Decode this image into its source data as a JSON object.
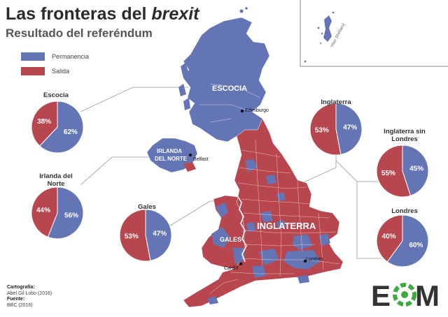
{
  "title": {
    "main": "Las fronteras del ",
    "emph": "brexit"
  },
  "subtitle": "Resultado del referéndum",
  "colors": {
    "remain": "#6475b6",
    "leave": "#b8464f",
    "logo_dark": "#333333",
    "logo_green": "#3caa3c"
  },
  "legend": [
    {
      "label": "Permanencia",
      "color_key": "remain"
    },
    {
      "label": "Salida",
      "color_key": "leave"
    }
  ],
  "map": {
    "regions": {
      "scotland": "ESCOCIA",
      "northern_ireland": "IRLANDA\nDEL NORTE",
      "wales": "GALES",
      "england": "INGLATERRA"
    },
    "cities": {
      "edinburgh": "Edimburgo",
      "belfast": "Belfast",
      "cardiff": "Cardiff",
      "london": "Londres"
    },
    "islands_label": "Islas Shetland"
  },
  "pies": [
    {
      "id": "escocia",
      "title": "Escocia",
      "remain": 62,
      "leave": 38
    },
    {
      "id": "irlanda",
      "title": "Irlanda del\nNorte",
      "remain": 56,
      "leave": 44
    },
    {
      "id": "gales",
      "title": "Gales",
      "remain": 47,
      "leave": 53
    },
    {
      "id": "inglaterra",
      "title": "Inglaterra",
      "remain": 47,
      "leave": 53
    },
    {
      "id": "sinlondres",
      "title": "Inglaterra sin\nLondres",
      "remain": 45,
      "leave": 55
    },
    {
      "id": "londres",
      "title": "Londres",
      "remain": 60,
      "leave": 40
    }
  ],
  "credits": {
    "cartography_label": "Cartografía:",
    "cartography_value": "Abel Gil Lobo (2016)",
    "source_label": "Fuente:",
    "source_value": "BBC (2016)"
  },
  "logo": {
    "left": "E",
    "right": "M"
  }
}
